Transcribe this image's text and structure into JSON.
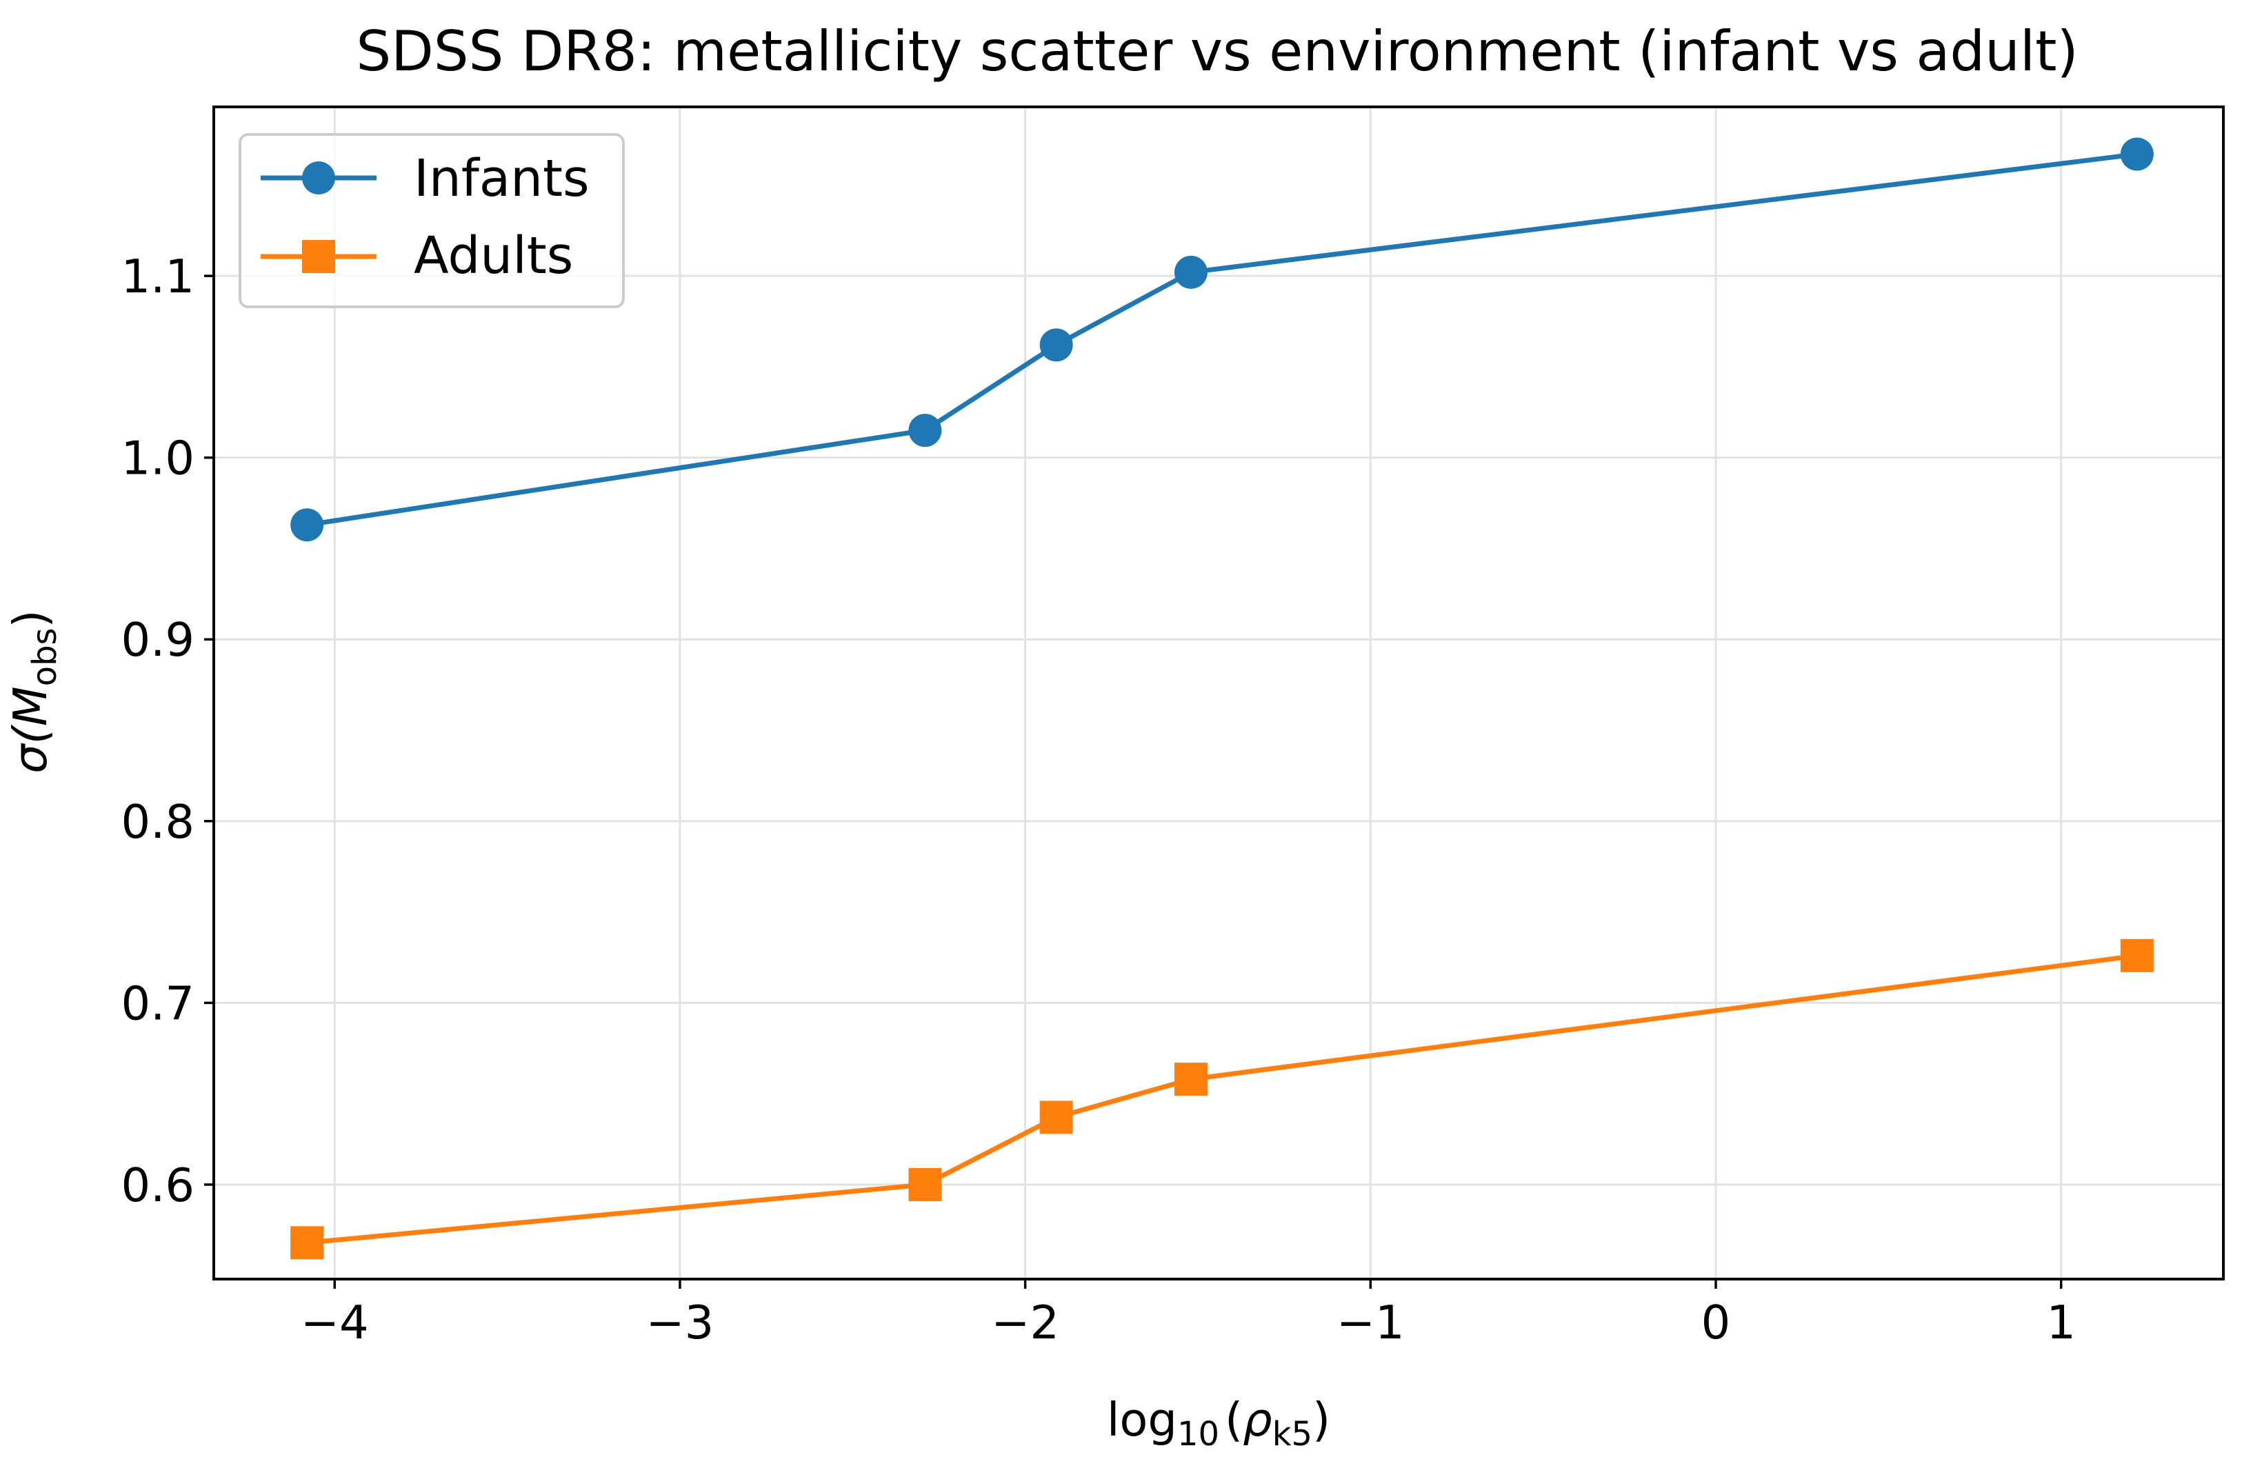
{
  "chart_data": {
    "type": "line",
    "title": "SDSS DR8: metallicity scatter vs environment (infant vs adult)",
    "xlabel": "log10 (ρk5)",
    "xlabel_parts": {
      "base": "log",
      "base_sub": "10",
      "symbol": "ρ",
      "symbol_sub": "k5"
    },
    "ylabel": "σ(Mobs)",
    "ylabel_parts": {
      "symbol": "σ(",
      "var": "M",
      "var_sub": "obs",
      "close": ")"
    },
    "xlim": [
      -4.35,
      1.47
    ],
    "ylim": [
      0.548,
      1.193
    ],
    "xticks": [
      -4,
      -3,
      -2,
      -1,
      0,
      1
    ],
    "xtick_labels": [
      "−4",
      "−3",
      "−2",
      "−1",
      "0",
      "1"
    ],
    "yticks": [
      0.6,
      0.7,
      0.8,
      0.9,
      1.0,
      1.1
    ],
    "ytick_labels": [
      "0.6",
      "0.7",
      "0.8",
      "0.9",
      "1.0",
      "1.1"
    ],
    "grid": true,
    "legend_position": "top-left",
    "series": [
      {
        "name": "Infants",
        "color": "#1f77b4",
        "marker": "circle",
        "x": [
          -4.08,
          -2.29,
          -1.91,
          -1.52,
          1.22
        ],
        "y": [
          0.963,
          1.015,
          1.062,
          1.102,
          1.167
        ]
      },
      {
        "name": "Adults",
        "color": "#ff7f0e",
        "marker": "square",
        "x": [
          -4.08,
          -2.29,
          -1.91,
          -1.52,
          1.22
        ],
        "y": [
          0.568,
          0.6,
          0.637,
          0.658,
          0.726
        ]
      }
    ]
  }
}
